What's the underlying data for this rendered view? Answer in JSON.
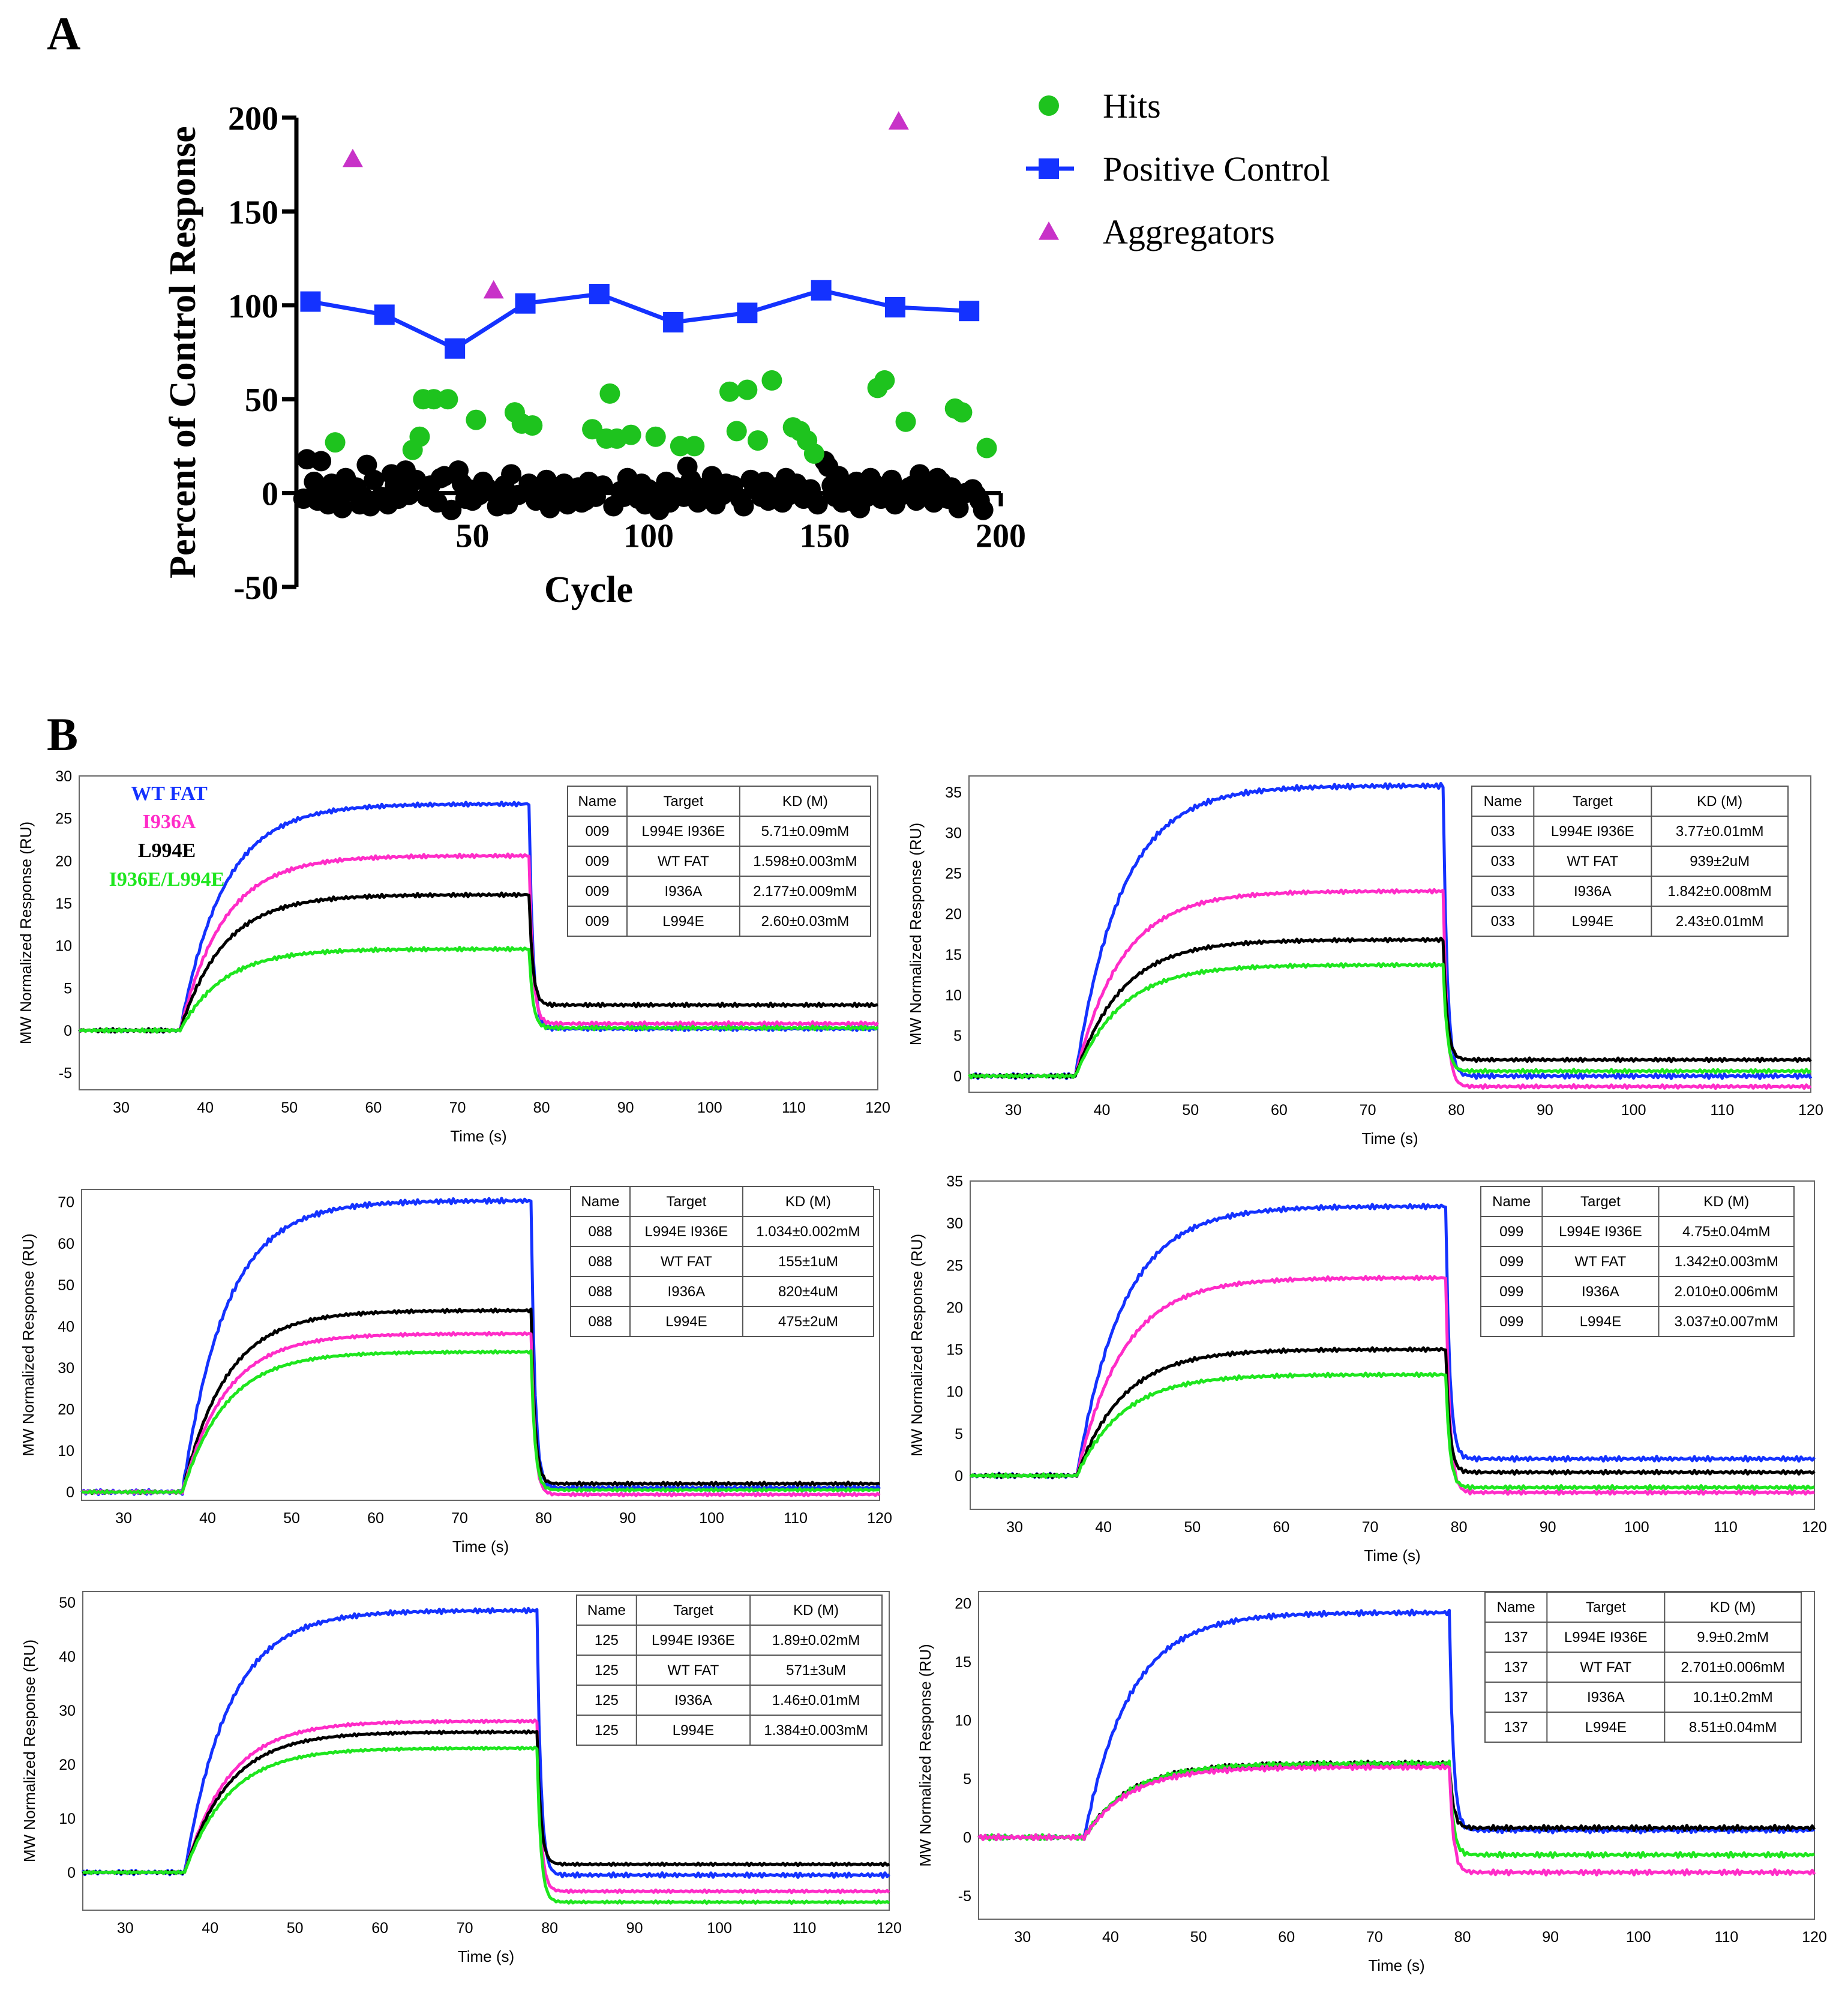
{
  "panel_a_label": "A",
  "panel_b_label": "B",
  "chart_data": [
    {
      "type": "scatter",
      "id": "A",
      "xlabel": "Cycle",
      "ylabel": "Percent of Control Response",
      "xlim": [
        0,
        200
      ],
      "ylim": [
        -50,
        200
      ],
      "xticks": [
        "50",
        "100",
        "150",
        "200"
      ],
      "yticks": [
        "-50",
        "0",
        "50",
        "100",
        "150",
        "200"
      ],
      "legend": [
        "Hits",
        "Positive Control",
        "Aggregators"
      ],
      "colors": {
        "hits": "#1ec31e",
        "control": "#1432ff",
        "aggregators": "#c832c8",
        "inactive": "#000000"
      },
      "series": [
        {
          "name": "Positive Control",
          "x": [
            4,
            25,
            45,
            65,
            86,
            107,
            128,
            149,
            170,
            191
          ],
          "y": [
            102,
            95,
            77,
            101,
            106,
            91,
            96,
            108,
            99,
            97
          ]
        },
        {
          "name": "Aggregators",
          "x": [
            16,
            56,
            171
          ],
          "y": [
            178,
            108,
            198
          ]
        },
        {
          "name": "Hits",
          "x": [
            11,
            33,
            35,
            36,
            39,
            43,
            51,
            62,
            64,
            67,
            84,
            88,
            89,
            91,
            95,
            102,
            109,
            113,
            123,
            125,
            128,
            131,
            135,
            141,
            143,
            145,
            147,
            165,
            167,
            173,
            187,
            189,
            196
          ],
          "y": [
            27,
            23,
            30,
            50,
            50,
            50,
            39,
            43,
            37,
            36,
            34,
            29,
            53,
            29,
            31,
            30,
            25,
            25,
            54,
            33,
            55,
            28,
            60,
            35,
            33,
            28,
            21,
            56,
            60,
            38,
            45,
            43,
            24
          ]
        },
        {
          "name": "Inactive",
          "x": [
            2,
            3,
            5,
            6,
            7,
            8,
            9,
            10,
            12,
            13,
            14,
            15,
            17,
            18,
            19,
            20,
            21,
            22,
            23,
            24,
            26,
            27,
            28,
            29,
            30,
            31,
            32,
            34,
            37,
            38,
            40,
            41,
            42,
            44,
            46,
            47,
            48,
            49,
            50,
            52,
            53,
            54,
            55,
            57,
            58,
            59,
            60,
            61,
            63,
            66,
            68,
            69,
            70,
            71,
            72,
            73,
            74,
            75,
            76,
            77,
            78,
            79,
            80,
            81,
            82,
            83,
            85,
            87,
            90,
            92,
            93,
            94,
            96,
            97,
            98,
            99,
            100,
            101,
            103,
            104,
            105,
            106,
            108,
            110,
            111,
            112,
            114,
            115,
            116,
            117,
            118,
            119,
            120,
            121,
            122,
            124,
            126,
            127,
            129,
            130,
            132,
            133,
            134,
            136,
            137,
            138,
            139,
            140,
            142,
            144,
            146,
            148,
            150,
            151,
            152,
            153,
            154,
            155,
            156,
            157,
            158,
            159,
            160,
            161,
            162,
            163,
            164,
            166,
            168,
            169,
            170,
            172,
            174,
            175,
            176,
            177,
            178,
            179,
            180,
            181,
            182,
            183,
            184,
            185,
            186,
            188,
            190,
            192,
            193,
            194,
            195
          ],
          "y": [
            -3,
            18,
            6,
            -4,
            17,
            2,
            -6,
            5,
            -1,
            -8,
            8,
            1,
            3,
            -6,
            -2,
            15,
            -7,
            7,
            -4,
            -2,
            -6,
            10,
            4,
            -3,
            6,
            12,
            -1,
            7,
            -2,
            4,
            -5,
            8,
            9,
            -9,
            12,
            5,
            -3,
            2,
            -4,
            -1,
            6,
            3,
            1,
            -7,
            -3,
            4,
            -6,
            10,
            -1,
            5,
            -4,
            2,
            -2,
            7,
            -8,
            3,
            -3,
            1,
            5,
            -6,
            2,
            -1,
            3,
            -5,
            -4,
            6,
            -2,
            4,
            -7,
            1,
            -2,
            8,
            3,
            -3,
            5,
            -6,
            2,
            -4,
            -9,
            -1,
            6,
            -5,
            3,
            -2,
            14,
            7,
            -5,
            1,
            3,
            -3,
            9,
            -6,
            2,
            -1,
            5,
            4,
            -3,
            -7,
            7,
            2,
            -2,
            6,
            -4,
            3,
            1,
            -5,
            8,
            -1,
            5,
            -3,
            2,
            -6,
            17,
            14,
            4,
            -2,
            9,
            -5,
            1,
            -4,
            3,
            6,
            -8,
            2,
            -2,
            8,
            5,
            -3,
            1,
            7,
            -6,
            -1,
            3,
            4,
            -4,
            10,
            2,
            -2,
            5,
            -5,
            8,
            6,
            1,
            -3,
            3,
            -8,
            0,
            2,
            -1,
            -4,
            -9
          ]
        }
      ]
    },
    {
      "type": "line",
      "id": "009",
      "xlabel": "Time (s)",
      "ylabel": "MW Normalized Response (RU)",
      "xlim": [
        25,
        120
      ],
      "ylim": [
        -7,
        30
      ],
      "xticks": [
        30,
        40,
        50,
        60,
        70,
        80,
        90,
        100,
        110,
        120
      ],
      "yticks": [
        -5,
        0,
        5,
        10,
        15,
        20,
        25,
        30
      ],
      "legend": [
        "WT FAT",
        "I936A",
        "L994E",
        "I936E/L994E"
      ],
      "series": [
        {
          "name": "WT FAT",
          "color": "#1432ff",
          "plateau": 26.7,
          "end": 0.2
        },
        {
          "name": "I936A",
          "color": "#ff2cc8",
          "plateau": 20.6,
          "end": 0.8
        },
        {
          "name": "L994E",
          "color": "#000000",
          "plateau": 16.0,
          "end": 3.0
        },
        {
          "name": "I936E/L994E",
          "color": "#1ee61e",
          "plateau": 9.6,
          "end": 0.3
        }
      ],
      "table": {
        "headers": [
          "Name",
          "Target",
          "KD (M)"
        ],
        "rows": [
          [
            "009",
            "L994E I936E",
            "5.71±0.09mM"
          ],
          [
            "009",
            "WT FAT",
            "1.598±0.003mM"
          ],
          [
            "009",
            "I936A",
            "2.177±0.009mM"
          ],
          [
            "009",
            "L994E",
            "2.60±0.03mM"
          ]
        ]
      }
    },
    {
      "type": "line",
      "id": "033",
      "xlabel": "Time (s)",
      "ylabel": "MW Normalized Response (RU)",
      "xlim": [
        25,
        120
      ],
      "ylim": [
        -2,
        37
      ],
      "xticks": [
        30,
        40,
        50,
        60,
        70,
        80,
        90,
        100,
        110,
        120
      ],
      "yticks": [
        0,
        5,
        10,
        15,
        20,
        25,
        30,
        35
      ],
      "series": [
        {
          "name": "WT FAT",
          "color": "#1432ff",
          "plateau": 35.8,
          "end": 0.0
        },
        {
          "name": "I936A",
          "color": "#ff2cc8",
          "plateau": 22.8,
          "end": -1.3
        },
        {
          "name": "L994E",
          "color": "#000000",
          "plateau": 16.8,
          "end": 2.0
        },
        {
          "name": "I936E/L994E",
          "color": "#1ee61e",
          "plateau": 13.7,
          "end": 0.6
        }
      ],
      "table": {
        "headers": [
          "Name",
          "Target",
          "KD (M)"
        ],
        "rows": [
          [
            "033",
            "L994E I936E",
            "3.77±0.01mM"
          ],
          [
            "033",
            "WT FAT",
            "939±2uM"
          ],
          [
            "033",
            "I936A",
            "1.842±0.008mM"
          ],
          [
            "033",
            "L994E",
            "2.43±0.01mM"
          ]
        ]
      }
    },
    {
      "type": "line",
      "id": "088",
      "xlabel": "Time (s)",
      "ylabel": "MW Normalized Response (RU)",
      "xlim": [
        25,
        120
      ],
      "ylim": [
        -2,
        73
      ],
      "xticks": [
        30,
        40,
        50,
        60,
        70,
        80,
        90,
        100,
        110,
        120
      ],
      "yticks": [
        0,
        10,
        20,
        30,
        40,
        50,
        60,
        70
      ],
      "series": [
        {
          "name": "WT FAT",
          "color": "#1432ff",
          "plateau": 70.3,
          "end": 1.0
        },
        {
          "name": "L994E",
          "color": "#000000",
          "plateau": 43.8,
          "end": 2.0
        },
        {
          "name": "I936A",
          "color": "#ff2cc8",
          "plateau": 38.2,
          "end": -0.6
        },
        {
          "name": "I936E/L994E",
          "color": "#1ee61e",
          "plateau": 33.8,
          "end": 0.5
        }
      ],
      "table": {
        "headers": [
          "Name",
          "Target",
          "KD (M)"
        ],
        "rows": [
          [
            "088",
            "L994E I936E",
            "1.034±0.002mM"
          ],
          [
            "088",
            "WT FAT",
            "155±1uM"
          ],
          [
            "088",
            "I936A",
            "820±4uM"
          ],
          [
            "088",
            "L994E",
            "475±2uM"
          ]
        ]
      }
    },
    {
      "type": "line",
      "id": "099",
      "xlabel": "Time (s)",
      "ylabel": "MW Normalized Response (RU)",
      "xlim": [
        25,
        120
      ],
      "ylim": [
        -4,
        35
      ],
      "xticks": [
        30,
        40,
        50,
        60,
        70,
        80,
        90,
        100,
        110,
        120
      ],
      "yticks": [
        0,
        5,
        10,
        15,
        20,
        25,
        30,
        35
      ],
      "series": [
        {
          "name": "WT FAT",
          "color": "#1432ff",
          "plateau": 32.0,
          "end": 2.0
        },
        {
          "name": "I936A",
          "color": "#ff2cc8",
          "plateau": 23.5,
          "end": -2.0
        },
        {
          "name": "L994E",
          "color": "#000000",
          "plateau": 15.0,
          "end": 0.4
        },
        {
          "name": "I936E/L994E",
          "color": "#1ee61e",
          "plateau": 12.0,
          "end": -1.4
        }
      ],
      "table": {
        "headers": [
          "Name",
          "Target",
          "KD (M)"
        ],
        "rows": [
          [
            "099",
            "L994E I936E",
            "4.75±0.04mM"
          ],
          [
            "099",
            "WT FAT",
            "1.342±0.003mM"
          ],
          [
            "099",
            "I936A",
            "2.010±0.006mM"
          ],
          [
            "099",
            "L994E",
            "3.037±0.007mM"
          ]
        ]
      }
    },
    {
      "type": "line",
      "id": "125",
      "xlabel": "Time (s)",
      "ylabel": "MW Normalized Response (RU)",
      "xlim": [
        25,
        120
      ],
      "ylim": [
        -7,
        52
      ],
      "xticks": [
        30,
        40,
        50,
        60,
        70,
        80,
        90,
        100,
        110,
        120
      ],
      "yticks": [
        0,
        10,
        20,
        30,
        40,
        50
      ],
      "series": [
        {
          "name": "WT FAT",
          "color": "#1432ff",
          "plateau": 48.5,
          "end": -0.5
        },
        {
          "name": "I936A",
          "color": "#ff2cc8",
          "plateau": 28.0,
          "end": -3.5
        },
        {
          "name": "L994E",
          "color": "#000000",
          "plateau": 26.0,
          "end": 1.5
        },
        {
          "name": "I936E/L994E",
          "color": "#1ee61e",
          "plateau": 23.0,
          "end": -5.5
        }
      ],
      "table": {
        "headers": [
          "Name",
          "Target",
          "KD (M)"
        ],
        "rows": [
          [
            "125",
            "L994E I936E",
            "1.89±0.02mM"
          ],
          [
            "125",
            "WT FAT",
            "571±3uM"
          ],
          [
            "125",
            "I936A",
            "1.46±0.01mM"
          ],
          [
            "125",
            "L994E",
            "1.384±0.003mM"
          ]
        ]
      }
    },
    {
      "type": "line",
      "id": "137",
      "xlabel": "Time (s)",
      "ylabel": "MW Normalized Response (RU)",
      "xlim": [
        25,
        120
      ],
      "ylim": [
        -7,
        21
      ],
      "xticks": [
        30,
        40,
        50,
        60,
        70,
        80,
        90,
        100,
        110,
        120
      ],
      "yticks": [
        -5,
        0,
        5,
        10,
        15,
        20
      ],
      "series": [
        {
          "name": "WT FAT",
          "color": "#1432ff",
          "plateau": 19.2,
          "end": 0.6
        },
        {
          "name": "L994E",
          "color": "#000000",
          "plateau": 6.3,
          "end": 0.8
        },
        {
          "name": "I936E/L994E",
          "color": "#1ee61e",
          "plateau": 6.3,
          "end": -1.5
        },
        {
          "name": "I936A",
          "color": "#ff2cc8",
          "plateau": 6.0,
          "end": -3.0
        }
      ],
      "table": {
        "headers": [
          "Name",
          "Target",
          "KD (M)"
        ],
        "rows": [
          [
            "137",
            "L994E I936E",
            "9.9±0.2mM"
          ],
          [
            "137",
            "WT FAT",
            "2.701±0.006mM"
          ],
          [
            "137",
            "I936A",
            "10.1±0.2mM"
          ],
          [
            "137",
            "L994E",
            "8.51±0.04mM"
          ]
        ]
      }
    }
  ]
}
